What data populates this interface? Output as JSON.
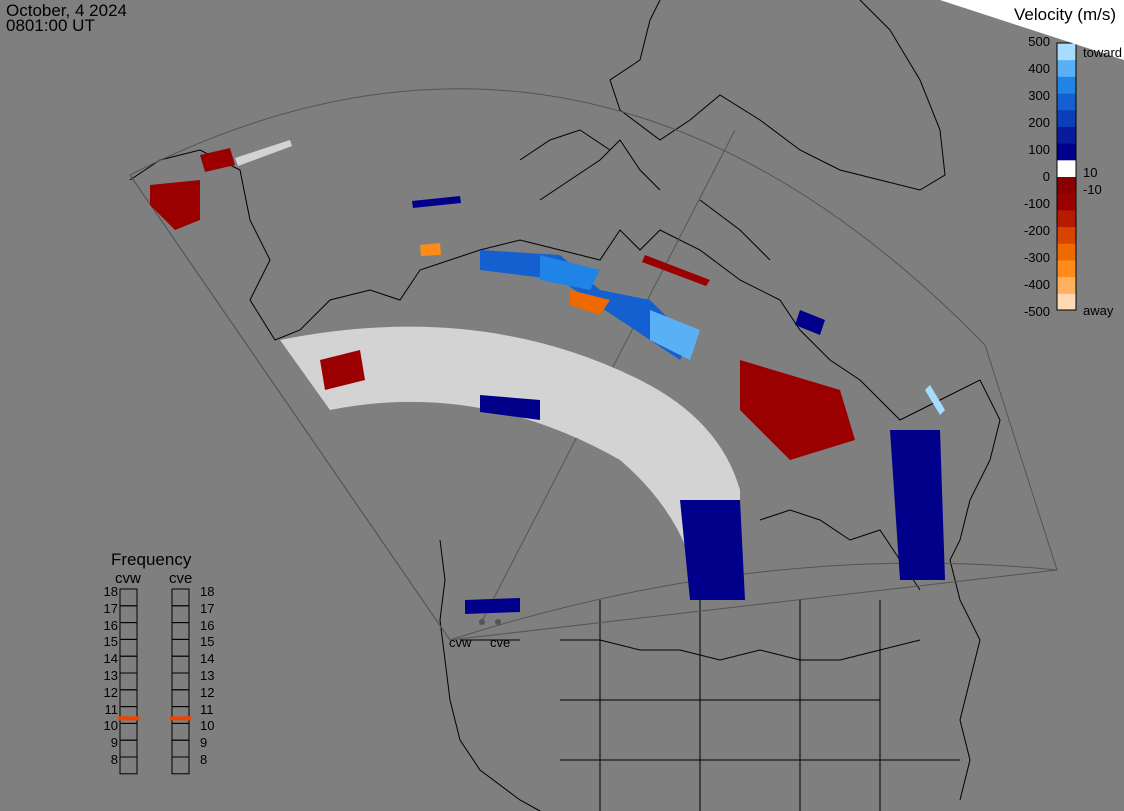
{
  "header": {
    "date": "October, 4 2024",
    "time": "0801:00 UT"
  },
  "colorbar": {
    "title": "Velocity (m/s)",
    "ticks": [
      "500",
      "400",
      "300",
      "200",
      "100",
      "0",
      "-100",
      "-200",
      "-300",
      "-400",
      "-500"
    ],
    "side_labels": {
      "toward": "toward",
      "pos": "10",
      "neg": "-10",
      "away": "away"
    },
    "colors": [
      "#ffd9b3",
      "#ffb060",
      "#ff8c1a",
      "#ee6a00",
      "#d84400",
      "#b81a00",
      "#9a0000",
      "#8a0000",
      "#ffffff",
      "#00008b",
      "#0a1a9c",
      "#0a3fb8",
      "#1560d0",
      "#1f84e6",
      "#5ab0f5",
      "#a8dcff"
    ]
  },
  "frequency": {
    "title": "Frequency",
    "radars": [
      "cvw",
      "cve"
    ],
    "scale": [
      "18",
      "17",
      "16",
      "15",
      "14",
      "13",
      "12",
      "11",
      "10",
      "9",
      "8"
    ],
    "cvw_mhz": 10.8,
    "cve_mhz": 10.8,
    "marker_color": "#ee4400"
  },
  "map": {
    "land_color": "#7f7f7f",
    "fov_color": "#555555",
    "radar_labels": [
      "cvw",
      "cve"
    ],
    "data_colors": {
      "low": "#d3d3d3",
      "toward": "#00008b",
      "toward_mid": "#1f84e6",
      "toward_hi": "#a8dcff",
      "away": "#9a0000",
      "away_mid": "#ee6a00",
      "away_hi": "#ffd9b3"
    }
  }
}
